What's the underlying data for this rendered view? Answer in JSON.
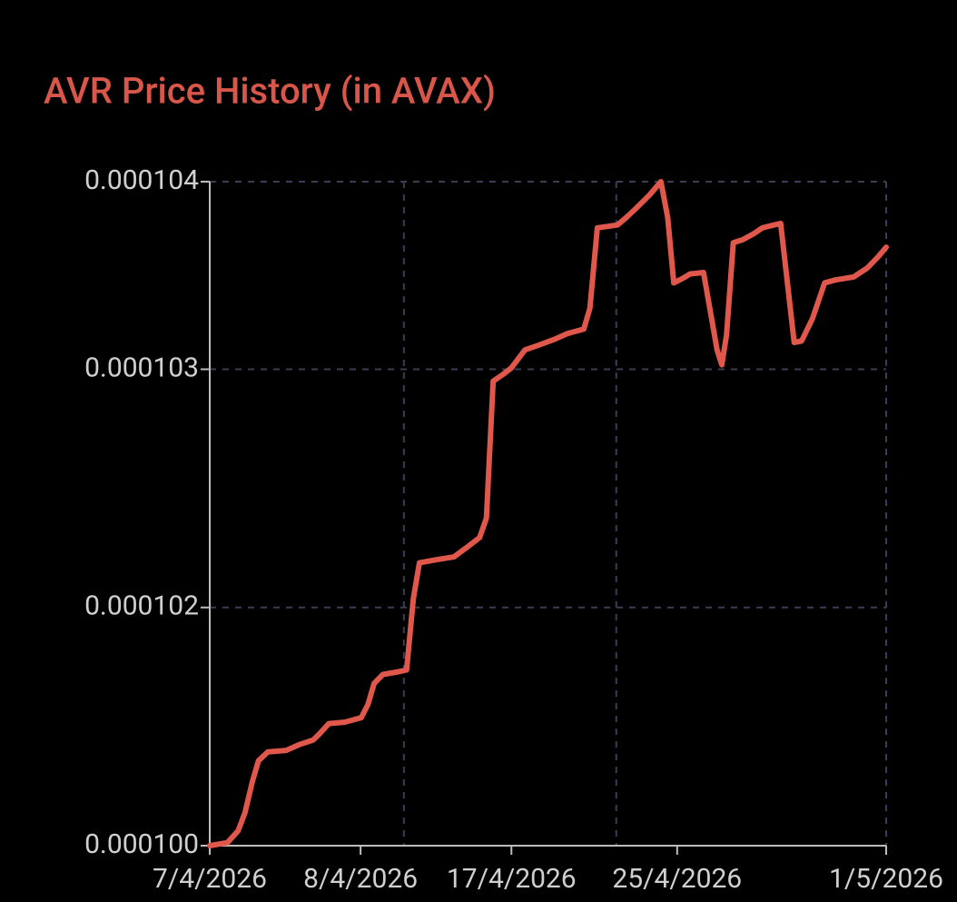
{
  "chart_data": {
    "type": "line",
    "title": "AVR Price History (in AVAX)",
    "x": [
      0,
      2.6,
      4.2,
      5.2,
      6.3,
      7.2,
      8.6,
      11.3,
      13.3,
      15.3,
      16.2,
      17.6,
      20.0,
      22.4,
      23.4,
      24.3,
      25.6,
      28.1,
      29.1,
      30.1,
      31.0,
      33.4,
      36.1,
      37.9,
      39.9,
      40.9,
      41.9,
      43.5,
      44.6,
      46.6,
      48.5,
      50.9,
      52.9,
      55.3,
      56.2,
      57.3,
      58.9,
      60.3,
      61.6,
      63.0,
      65.0,
      66.7,
      67.7,
      68.6,
      69.9,
      71.0,
      73.0,
      75.0,
      75.7,
      76.4,
      77.4,
      78.8,
      80.4,
      81.7,
      84.4,
      85.5,
      86.4,
      87.5,
      89.1,
      90.9,
      92.5,
      95.2,
      97.2,
      98.9,
      100
    ],
    "series": [
      {
        "name": "AVR",
        "color": "#e0574b",
        "values": [
          0.0001,
          0.00010002,
          0.0001001,
          0.00010022,
          0.00010043,
          0.00010057,
          0.00010063,
          0.00010064,
          0.00010068,
          0.00010071,
          0.00010075,
          0.00010082,
          0.00010083,
          0.00010086,
          0.00010095,
          0.00010109,
          0.00010115,
          0.00010117,
          0.00010118,
          0.00010166,
          0.0001019,
          0.00010192,
          0.00010194,
          0.000102,
          0.00010207,
          0.0001022,
          0.00010312,
          0.00010317,
          0.00010321,
          0.00010333,
          0.00010336,
          0.0001034,
          0.00010344,
          0.00010347,
          0.00010361,
          0.00010415,
          0.00010416,
          0.00010417,
          0.00010422,
          0.00010428,
          0.00010437,
          0.00010446,
          0.00010422,
          0.00010378,
          0.00010381,
          0.00010384,
          0.00010385,
          0.00010333,
          0.00010323,
          0.00010343,
          0.00010405,
          0.00010407,
          0.00010411,
          0.00010415,
          0.00010418,
          0.00010374,
          0.00010338,
          0.00010339,
          0.00010354,
          0.00010378,
          0.0001038,
          0.00010382,
          0.00010388,
          0.00010396,
          0.00010402
        ]
      }
    ],
    "xlim": [
      0,
      100
    ],
    "xticks": [
      {
        "value": 0,
        "label": "7/4/2026"
      },
      {
        "value": 22.3,
        "label": "8/4/2026"
      },
      {
        "value": 44.6,
        "label": "17/4/2026"
      },
      {
        "value": 69.1,
        "label": "25/4/2026"
      },
      {
        "value": 100,
        "label": "1/5/2026"
      }
    ],
    "x_grid_lines": [
      28.7,
      60.1,
      100
    ],
    "ylim": [
      0.0001,
      0.00010446
    ],
    "yticks": [
      {
        "value": 0.0001,
        "label": "0.000100"
      },
      {
        "value": 0.0001016,
        "label": "0.000102"
      },
      {
        "value": 0.0001032,
        "label": "0.000103"
      },
      {
        "value": 0.00010446,
        "label": "0.000104"
      }
    ],
    "grid": true
  }
}
